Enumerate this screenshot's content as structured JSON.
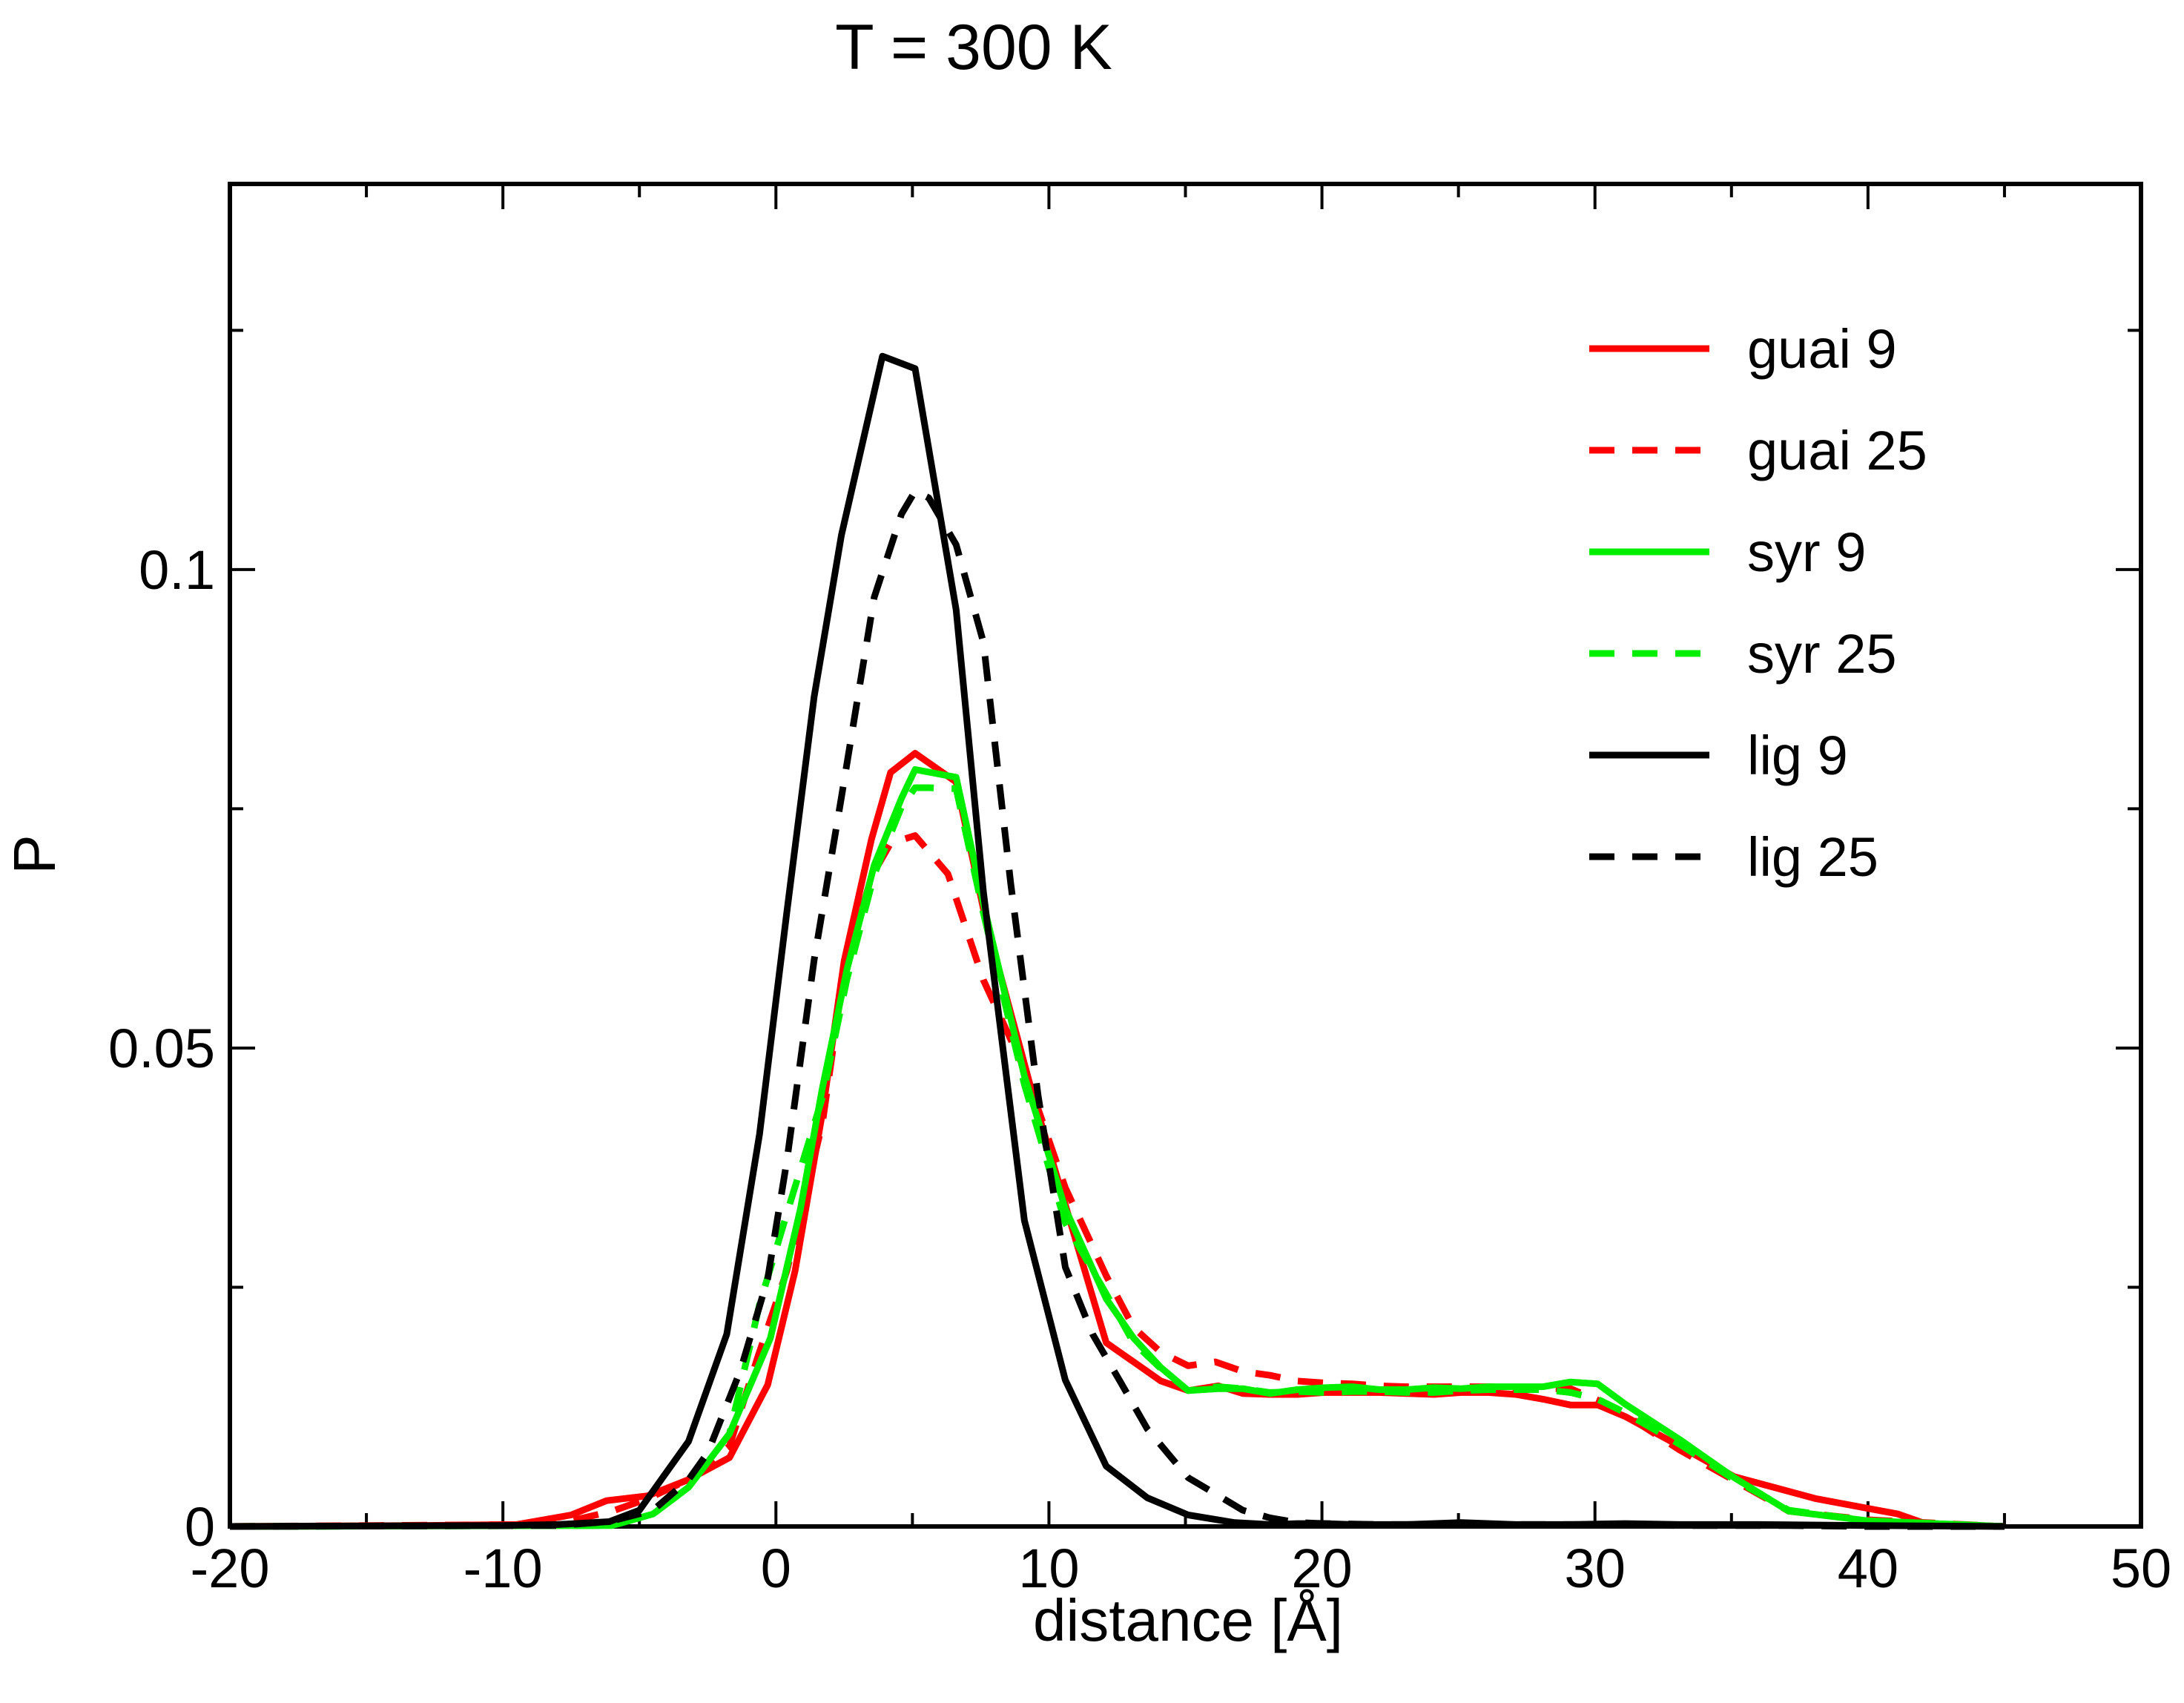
{
  "chart_data": {
    "type": "line",
    "title": "T = 300 K",
    "xlabel": "distance [Å]",
    "ylabel": "P",
    "xlim": [
      -20,
      50
    ],
    "ylim": [
      0,
      0.1403
    ],
    "x_major_ticks": [
      -20,
      -10,
      0,
      10,
      20,
      30,
      40,
      50
    ],
    "x_tick_labels": [
      "-20",
      "-10",
      "0",
      "10",
      "20",
      "30",
      "40",
      "50"
    ],
    "x_minor_ticks": [
      -15,
      -5,
      5,
      15,
      25,
      35,
      45
    ],
    "y_major_ticks": [
      0,
      0.05,
      0.1
    ],
    "y_tick_labels": [
      "0",
      "0.05",
      "0.1"
    ],
    "y_minor_ticks": [
      0.025,
      0.075,
      0.125
    ],
    "legend_position": "top-right",
    "series": [
      {
        "name": "guai 9",
        "color": "#ff0000",
        "dash": "solid",
        "x": [
          -20,
          -13,
          -9.5,
          -7.5,
          -6.2,
          -4.7,
          -3.2,
          -1.7,
          -0.3,
          0.7,
          1.7,
          2.5,
          3.5,
          4.2,
          5.1,
          6.6,
          7.7,
          9.4,
          11.1,
          12.1,
          13.1,
          14.1,
          15.1,
          16.2,
          17.1,
          18.1,
          19.1,
          20.1,
          21.1,
          22.1,
          23.1,
          24.1,
          25.1,
          26.1,
          27.1,
          28.1,
          29.1,
          30.1,
          31.1,
          33.1,
          35.1,
          38.1,
          41.1,
          42.1,
          45
        ],
        "y": [
          0,
          0.0001,
          0.0002,
          0.0012,
          0.0027,
          0.0032,
          0.0049,
          0.0072,
          0.0148,
          0.0267,
          0.0432,
          0.0591,
          0.0718,
          0.0788,
          0.0808,
          0.0778,
          0.0632,
          0.0452,
          0.0288,
          0.0192,
          0.0172,
          0.0152,
          0.0142,
          0.0147,
          0.0139,
          0.0138,
          0.0138,
          0.014,
          0.014,
          0.014,
          0.0139,
          0.0138,
          0.014,
          0.014,
          0.0138,
          0.0133,
          0.0127,
          0.0127,
          0.0115,
          0.0084,
          0.0052,
          0.0029,
          0.0013,
          0.0003,
          0
        ]
      },
      {
        "name": "guai 25",
        "color": "#ff0000",
        "dash": "dashed",
        "x": [
          -20,
          -9,
          -7.5,
          -6,
          -4.7,
          -3.2,
          -1.7,
          -0.7,
          0.4,
          1.7,
          2.5,
          3.5,
          4.2,
          5.1,
          6.3,
          7.6,
          9.1,
          10.6,
          12.1,
          13.1,
          14.1,
          15.1,
          16.1,
          17.1,
          18.1,
          19.1,
          20.1,
          21.1,
          22.1,
          23.1,
          24.1,
          25.1,
          26.1,
          27.1,
          28.1,
          29.1,
          30.1,
          31.1,
          33.1,
          35.1,
          37.1,
          40,
          45
        ],
        "y": [
          0,
          0.0002,
          0.0006,
          0.0016,
          0.0029,
          0.0049,
          0.0084,
          0.0174,
          0.0267,
          0.0421,
          0.0581,
          0.0679,
          0.0714,
          0.0722,
          0.0682,
          0.0571,
          0.0478,
          0.0354,
          0.0262,
          0.0208,
          0.0182,
          0.0168,
          0.0172,
          0.0162,
          0.0158,
          0.0152,
          0.015,
          0.0149,
          0.0147,
          0.0146,
          0.0146,
          0.0146,
          0.0146,
          0.0145,
          0.0144,
          0.0144,
          0.0132,
          0.0117,
          0.008,
          0.0048,
          0.0016,
          0.0007,
          0
        ]
      },
      {
        "name": "syr 9",
        "color": "#00ee00",
        "dash": "solid",
        "x": [
          -20,
          -6,
          -4.5,
          -3.2,
          -1.7,
          -0.2,
          0.9,
          1.7,
          2.6,
          3.6,
          4.6,
          5.1,
          6.6,
          7.6,
          9.1,
          10.6,
          12.1,
          13.1,
          14.1,
          15.1,
          16.2,
          17.1,
          18.1,
          19.1,
          20.1,
          21.1,
          22.1,
          23.1,
          24.1,
          25.1,
          26.1,
          27.1,
          28.1,
          29.1,
          30.1,
          31.1,
          33.1,
          35.1,
          37.1,
          40,
          45
        ],
        "y": [
          0,
          0.0001,
          0.0013,
          0.0041,
          0.0097,
          0.0197,
          0.0332,
          0.0458,
          0.0582,
          0.0691,
          0.0761,
          0.0791,
          0.0783,
          0.0651,
          0.0471,
          0.0332,
          0.0238,
          0.0197,
          0.0166,
          0.0142,
          0.0144,
          0.0144,
          0.0139,
          0.0143,
          0.0145,
          0.0146,
          0.0143,
          0.0143,
          0.0145,
          0.0144,
          0.0146,
          0.0146,
          0.0146,
          0.0151,
          0.0149,
          0.0128,
          0.0091,
          0.0051,
          0.0016,
          0.0006,
          0
        ]
      },
      {
        "name": "syr 25",
        "color": "#00ee00",
        "dash": "dashed",
        "x": [
          -20,
          -6,
          -4.5,
          -3.2,
          -1.7,
          -0.6,
          0.4,
          1.7,
          2.6,
          3.6,
          4.6,
          5.1,
          5.6,
          6.6,
          7.6,
          9.1,
          10.6,
          12.1,
          13.1,
          14.1,
          15.1,
          16.2,
          17.1,
          18.1,
          19.1,
          20.1,
          21.1,
          22.1,
          23.1,
          24.1,
          25.1,
          26.1,
          27.1,
          28.1,
          29.1,
          30.1,
          31.1,
          33.1,
          35.1,
          37.1,
          40,
          45
        ],
        "y": [
          0,
          0.0001,
          0.0013,
          0.0041,
          0.0097,
          0.0232,
          0.0327,
          0.0448,
          0.0572,
          0.0681,
          0.0752,
          0.0772,
          0.0772,
          0.0771,
          0.0641,
          0.0462,
          0.0317,
          0.0243,
          0.0192,
          0.0165,
          0.0142,
          0.0146,
          0.0144,
          0.014,
          0.0141,
          0.014,
          0.0141,
          0.0141,
          0.014,
          0.014,
          0.0142,
          0.0143,
          0.0143,
          0.0143,
          0.014,
          0.0133,
          0.0119,
          0.0086,
          0.0049,
          0.0017,
          0.0006,
          0
        ]
      },
      {
        "name": "lig 9",
        "color": "#000000",
        "dash": "solid",
        "x": [
          -20,
          -10,
          -8,
          -6.1,
          -5,
          -3.2,
          -1.8,
          -0.6,
          0.4,
          1.4,
          2.4,
          3.9,
          5.1,
          6.6,
          7.6,
          9.1,
          10.6,
          12.1,
          13.6,
          15.1,
          16.8,
          18.1,
          19.1,
          20.1,
          21.1,
          23.1,
          25.1,
          27.1,
          29.1,
          31.1,
          33.1,
          36,
          40,
          45
        ],
        "y": [
          0,
          0.0001,
          0.0002,
          0.0005,
          0.0017,
          0.0089,
          0.0201,
          0.041,
          0.0642,
          0.0867,
          0.1036,
          0.1223,
          0.121,
          0.0958,
          0.0663,
          0.032,
          0.0153,
          0.0063,
          0.003,
          0.0012,
          0.0004,
          0.0002,
          0.0003,
          0.0003,
          0.0002,
          0.0002,
          0.0004,
          0.0002,
          0.0002,
          0.0003,
          0.0002,
          0.0002,
          0.0001,
          0
        ]
      },
      {
        "name": "lig 25",
        "color": "#000000",
        "dash": "dashed",
        "x": [
          -20,
          -8,
          -6.1,
          -4.5,
          -3.2,
          -2.5,
          -1.3,
          -0.3,
          0.4,
          1.4,
          2.4,
          3.6,
          4.6,
          5.1,
          5.6,
          6.6,
          7.6,
          8.6,
          9.6,
          10.6,
          11.6,
          12.6,
          13.6,
          15.1,
          16.1,
          17.1,
          18.1,
          19.1,
          20.1,
          22.1,
          25.1,
          29.1,
          33.1,
          37,
          40,
          45
        ],
        "y": [
          0,
          0.0001,
          0.0005,
          0.0017,
          0.0049,
          0.0077,
          0.0163,
          0.0259,
          0.0382,
          0.0592,
          0.0762,
          0.0971,
          0.1058,
          0.1082,
          0.1075,
          0.1026,
          0.0924,
          0.0672,
          0.0451,
          0.0271,
          0.0201,
          0.0152,
          0.0102,
          0.0051,
          0.0034,
          0.0017,
          0.0009,
          0.0004,
          0.0003,
          0.0002,
          0.0002,
          0.0002,
          0.0001,
          0.0001,
          0,
          0
        ]
      }
    ]
  }
}
